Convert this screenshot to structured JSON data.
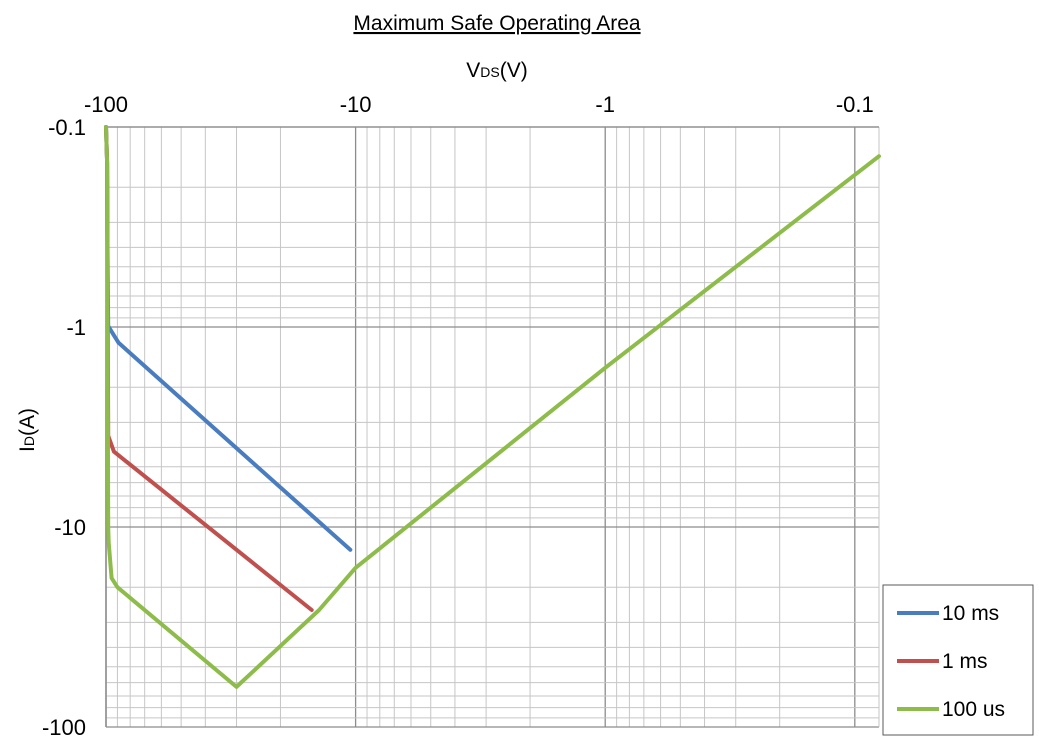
{
  "chart_data": {
    "type": "line",
    "title": "Maximum Safe Operating Area",
    "xlabel": {
      "main": "V",
      "sub": "DS",
      "unit": "(V)"
    },
    "ylabel": {
      "main": "I",
      "sub": "D",
      "unit": "(A)"
    },
    "x_scale": "log",
    "y_scale": "log",
    "x_axis_position": "top",
    "x_direction": "decreasing-magnitude left-to-right",
    "y_direction": "increasing-magnitude top-to-bottom",
    "xlim": [
      -100,
      -0.08
    ],
    "ylim": [
      -0.1,
      -100
    ],
    "x_ticks": [
      {
        "value": -100,
        "label": "-100"
      },
      {
        "value": -10,
        "label": "-10"
      },
      {
        "value": -1,
        "label": "-1"
      },
      {
        "value": -0.1,
        "label": "-0.1"
      }
    ],
    "y_ticks": [
      {
        "value": -0.1,
        "label": "-0.1"
      },
      {
        "value": -1,
        "label": "-1"
      },
      {
        "value": -10,
        "label": "-10"
      },
      {
        "value": -100,
        "label": "-100"
      }
    ],
    "grid": true,
    "legend_position": "bottom-right",
    "series": [
      {
        "name": "10 ms",
        "color": "#4a7dbf",
        "points": [
          [
            -100,
            -0.1
          ],
          [
            -99,
            -0.15
          ],
          [
            -98.5,
            -0.5
          ],
          [
            -98,
            -0.99
          ],
          [
            -93,
            -1.1
          ],
          [
            -89,
            -1.2
          ],
          [
            -10.5,
            -13
          ]
        ]
      },
      {
        "name": "1 ms",
        "color": "#c0504d",
        "points": [
          [
            -100,
            -0.1
          ],
          [
            -99,
            -0.15
          ],
          [
            -98.5,
            -0.5
          ],
          [
            -98,
            -3.5
          ],
          [
            -93,
            -4.2
          ],
          [
            -15,
            -26
          ]
        ]
      },
      {
        "name": "100 us",
        "color": "#8dbc4a",
        "points": [
          [
            -100,
            -0.1
          ],
          [
            -99,
            -0.15
          ],
          [
            -98.5,
            -1
          ],
          [
            -98,
            -10
          ],
          [
            -97.5,
            -12
          ],
          [
            -95,
            -18
          ],
          [
            -90,
            -20
          ],
          [
            -30,
            -63
          ],
          [
            -14,
            -26
          ],
          [
            -10,
            -16
          ],
          [
            -1,
            -1.6
          ],
          [
            -0.08,
            -0.14
          ]
        ]
      }
    ]
  }
}
